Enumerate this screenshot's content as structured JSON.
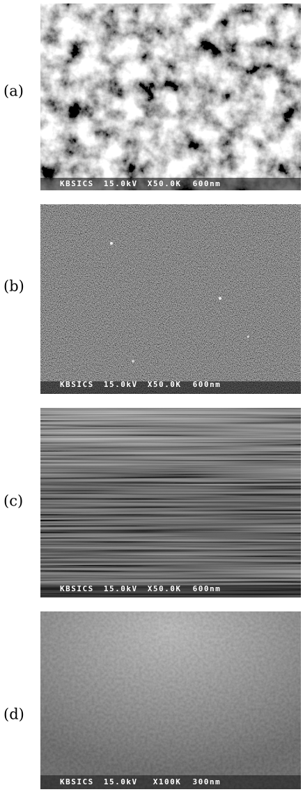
{
  "panels": [
    {
      "label": "(a)",
      "info": {
        "instrument": "KBSICS",
        "voltage": "15.0kV",
        "magnification": "X50.0K",
        "scale": "600nm"
      }
    },
    {
      "label": "(b)",
      "info": {
        "instrument": "KBSICS",
        "voltage": "15.0kV",
        "magnification": "X50.0K",
        "scale": "600nm"
      }
    },
    {
      "label": "(c)",
      "info": {
        "instrument": "KBSICS",
        "voltage": "15.0kV",
        "magnification": "X50.0K",
        "scale": "600nm"
      }
    },
    {
      "label": "(d)",
      "info": {
        "instrument": "KBSICS",
        "voltage": "15.0kV",
        "magnification": "X100K",
        "scale": "300nm"
      }
    }
  ]
}
